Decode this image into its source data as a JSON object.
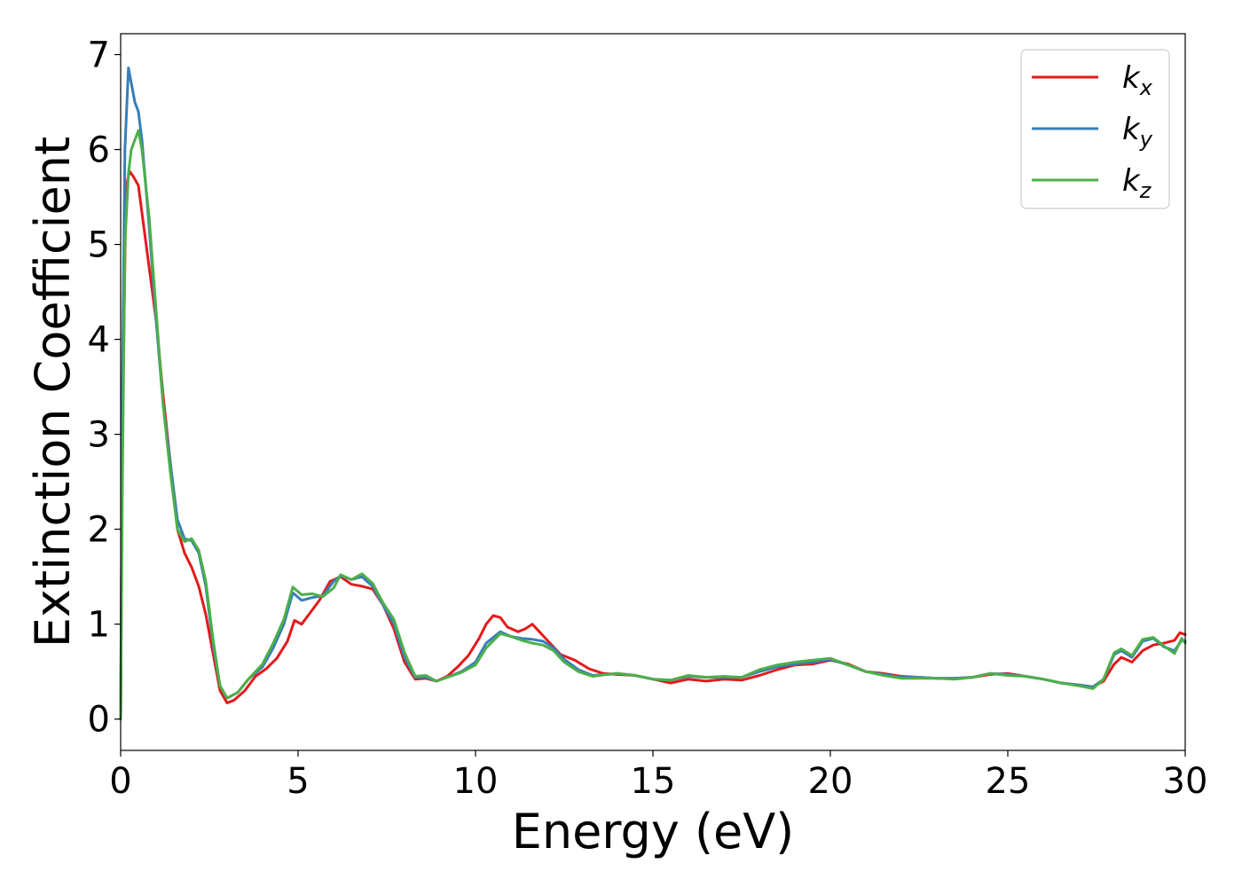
{
  "chart_data": {
    "type": "line",
    "title": "",
    "xlabel": "Energy (eV)",
    "ylabel": "Extinction Coefficient",
    "xlim": [
      0,
      30
    ],
    "ylim": [
      -0.33,
      7.22
    ],
    "xticks": [
      0,
      5,
      10,
      15,
      20,
      25,
      30
    ],
    "yticks": [
      0,
      1,
      2,
      3,
      4,
      5,
      6,
      7
    ],
    "grid": false,
    "legend_position": "top-right",
    "series": [
      {
        "name": "k_x",
        "symbol": "k",
        "subscript": "x",
        "color": "#e41a1c",
        "points": [
          [
            0,
            0
          ],
          [
            0.05,
            3.0
          ],
          [
            0.15,
            5.6
          ],
          [
            0.25,
            5.77
          ],
          [
            0.35,
            5.72
          ],
          [
            0.5,
            5.62
          ],
          [
            0.7,
            5.05
          ],
          [
            1.0,
            4.2
          ],
          [
            1.2,
            3.4
          ],
          [
            1.4,
            2.7
          ],
          [
            1.6,
            2.0
          ],
          [
            1.8,
            1.75
          ],
          [
            2.0,
            1.6
          ],
          [
            2.2,
            1.4
          ],
          [
            2.4,
            1.1
          ],
          [
            2.6,
            0.7
          ],
          [
            2.8,
            0.3
          ],
          [
            3.0,
            0.17
          ],
          [
            3.2,
            0.2
          ],
          [
            3.5,
            0.3
          ],
          [
            3.8,
            0.45
          ],
          [
            4.1,
            0.53
          ],
          [
            4.4,
            0.64
          ],
          [
            4.7,
            0.82
          ],
          [
            4.9,
            1.04
          ],
          [
            5.1,
            1.0
          ],
          [
            5.3,
            1.1
          ],
          [
            5.6,
            1.25
          ],
          [
            5.9,
            1.45
          ],
          [
            6.2,
            1.5
          ],
          [
            6.5,
            1.42
          ],
          [
            6.8,
            1.4
          ],
          [
            7.1,
            1.37
          ],
          [
            7.4,
            1.2
          ],
          [
            7.7,
            0.95
          ],
          [
            8.0,
            0.6
          ],
          [
            8.3,
            0.42
          ],
          [
            8.6,
            0.43
          ],
          [
            8.9,
            0.4
          ],
          [
            9.2,
            0.45
          ],
          [
            9.5,
            0.55
          ],
          [
            9.8,
            0.67
          ],
          [
            10.1,
            0.85
          ],
          [
            10.3,
            1.0
          ],
          [
            10.5,
            1.09
          ],
          [
            10.7,
            1.07
          ],
          [
            10.9,
            0.97
          ],
          [
            11.2,
            0.92
          ],
          [
            11.4,
            0.95
          ],
          [
            11.6,
            1.0
          ],
          [
            11.8,
            0.92
          ],
          [
            12.1,
            0.8
          ],
          [
            12.4,
            0.68
          ],
          [
            12.8,
            0.62
          ],
          [
            13.2,
            0.53
          ],
          [
            13.6,
            0.48
          ],
          [
            14.0,
            0.47
          ],
          [
            14.5,
            0.46
          ],
          [
            15.0,
            0.42
          ],
          [
            15.5,
            0.38
          ],
          [
            16.0,
            0.42
          ],
          [
            16.5,
            0.4
          ],
          [
            17.0,
            0.42
          ],
          [
            17.5,
            0.41
          ],
          [
            18.0,
            0.46
          ],
          [
            18.5,
            0.52
          ],
          [
            19.0,
            0.57
          ],
          [
            19.5,
            0.58
          ],
          [
            20.0,
            0.62
          ],
          [
            20.5,
            0.58
          ],
          [
            21.0,
            0.5
          ],
          [
            21.5,
            0.48
          ],
          [
            22.0,
            0.45
          ],
          [
            22.5,
            0.44
          ],
          [
            23.0,
            0.43
          ],
          [
            23.5,
            0.43
          ],
          [
            24.0,
            0.44
          ],
          [
            24.5,
            0.47
          ],
          [
            25.0,
            0.48
          ],
          [
            25.5,
            0.45
          ],
          [
            26.0,
            0.42
          ],
          [
            26.5,
            0.38
          ],
          [
            27.0,
            0.36
          ],
          [
            27.4,
            0.34
          ],
          [
            27.7,
            0.4
          ],
          [
            28.0,
            0.58
          ],
          [
            28.2,
            0.65
          ],
          [
            28.5,
            0.6
          ],
          [
            28.8,
            0.72
          ],
          [
            29.1,
            0.78
          ],
          [
            29.4,
            0.8
          ],
          [
            29.7,
            0.83
          ],
          [
            29.85,
            0.91
          ],
          [
            30.0,
            0.89
          ]
        ]
      },
      {
        "name": "k_y",
        "symbol": "k",
        "subscript": "y",
        "color": "#377eb8",
        "points": [
          [
            0,
            0
          ],
          [
            0.05,
            3.5
          ],
          [
            0.12,
            6.0
          ],
          [
            0.22,
            6.86
          ],
          [
            0.3,
            6.7
          ],
          [
            0.4,
            6.5
          ],
          [
            0.5,
            6.4
          ],
          [
            0.6,
            6.1
          ],
          [
            0.8,
            5.2
          ],
          [
            1.0,
            4.2
          ],
          [
            1.2,
            3.3
          ],
          [
            1.4,
            2.7
          ],
          [
            1.6,
            2.1
          ],
          [
            1.8,
            1.9
          ],
          [
            2.0,
            1.88
          ],
          [
            2.2,
            1.75
          ],
          [
            2.4,
            1.4
          ],
          [
            2.6,
            0.8
          ],
          [
            2.8,
            0.35
          ],
          [
            3.0,
            0.22
          ],
          [
            3.3,
            0.28
          ],
          [
            3.6,
            0.42
          ],
          [
            4.0,
            0.55
          ],
          [
            4.3,
            0.75
          ],
          [
            4.6,
            1.0
          ],
          [
            4.85,
            1.33
          ],
          [
            5.1,
            1.25
          ],
          [
            5.4,
            1.28
          ],
          [
            5.7,
            1.3
          ],
          [
            6.0,
            1.45
          ],
          [
            6.2,
            1.51
          ],
          [
            6.5,
            1.47
          ],
          [
            6.8,
            1.5
          ],
          [
            7.1,
            1.4
          ],
          [
            7.4,
            1.2
          ],
          [
            7.7,
            1.0
          ],
          [
            8.0,
            0.65
          ],
          [
            8.3,
            0.44
          ],
          [
            8.6,
            0.44
          ],
          [
            8.9,
            0.4
          ],
          [
            9.2,
            0.44
          ],
          [
            9.6,
            0.5
          ],
          [
            10.0,
            0.6
          ],
          [
            10.3,
            0.8
          ],
          [
            10.7,
            0.92
          ],
          [
            11.0,
            0.87
          ],
          [
            11.3,
            0.85
          ],
          [
            11.6,
            0.84
          ],
          [
            11.9,
            0.82
          ],
          [
            12.2,
            0.75
          ],
          [
            12.5,
            0.63
          ],
          [
            12.9,
            0.52
          ],
          [
            13.3,
            0.46
          ],
          [
            13.7,
            0.47
          ],
          [
            14.0,
            0.48
          ],
          [
            14.5,
            0.46
          ],
          [
            15.0,
            0.42
          ],
          [
            15.5,
            0.41
          ],
          [
            16.0,
            0.45
          ],
          [
            16.5,
            0.44
          ],
          [
            17.0,
            0.44
          ],
          [
            17.5,
            0.44
          ],
          [
            18.0,
            0.5
          ],
          [
            18.5,
            0.55
          ],
          [
            19.0,
            0.58
          ],
          [
            19.5,
            0.6
          ],
          [
            20.0,
            0.63
          ],
          [
            20.5,
            0.57
          ],
          [
            21.0,
            0.5
          ],
          [
            21.5,
            0.47
          ],
          [
            22.0,
            0.44
          ],
          [
            22.5,
            0.44
          ],
          [
            23.0,
            0.43
          ],
          [
            23.5,
            0.43
          ],
          [
            24.0,
            0.44
          ],
          [
            24.5,
            0.48
          ],
          [
            25.0,
            0.47
          ],
          [
            25.5,
            0.45
          ],
          [
            26.0,
            0.42
          ],
          [
            26.5,
            0.38
          ],
          [
            27.0,
            0.36
          ],
          [
            27.4,
            0.34
          ],
          [
            27.7,
            0.42
          ],
          [
            28.0,
            0.68
          ],
          [
            28.2,
            0.72
          ],
          [
            28.5,
            0.65
          ],
          [
            28.8,
            0.82
          ],
          [
            29.1,
            0.85
          ],
          [
            29.4,
            0.76
          ],
          [
            29.7,
            0.72
          ],
          [
            29.9,
            0.83
          ],
          [
            30.0,
            0.82
          ]
        ]
      },
      {
        "name": "k_z",
        "symbol": "k",
        "subscript": "z",
        "color": "#4daf4a",
        "points": [
          [
            0,
            0
          ],
          [
            0.05,
            2.5
          ],
          [
            0.12,
            5.0
          ],
          [
            0.22,
            5.75
          ],
          [
            0.3,
            6.0
          ],
          [
            0.4,
            6.1
          ],
          [
            0.5,
            6.2
          ],
          [
            0.6,
            6.0
          ],
          [
            0.8,
            5.3
          ],
          [
            1.0,
            4.3
          ],
          [
            1.2,
            3.3
          ],
          [
            1.4,
            2.6
          ],
          [
            1.6,
            2.0
          ],
          [
            1.8,
            1.87
          ],
          [
            2.0,
            1.9
          ],
          [
            2.2,
            1.78
          ],
          [
            2.4,
            1.45
          ],
          [
            2.6,
            0.85
          ],
          [
            2.8,
            0.35
          ],
          [
            3.0,
            0.22
          ],
          [
            3.3,
            0.28
          ],
          [
            3.6,
            0.42
          ],
          [
            4.0,
            0.58
          ],
          [
            4.3,
            0.8
          ],
          [
            4.6,
            1.05
          ],
          [
            4.85,
            1.39
          ],
          [
            5.1,
            1.31
          ],
          [
            5.4,
            1.32
          ],
          [
            5.7,
            1.29
          ],
          [
            6.0,
            1.38
          ],
          [
            6.2,
            1.52
          ],
          [
            6.5,
            1.47
          ],
          [
            6.8,
            1.53
          ],
          [
            7.1,
            1.43
          ],
          [
            7.4,
            1.22
          ],
          [
            7.7,
            1.05
          ],
          [
            8.0,
            0.7
          ],
          [
            8.3,
            0.45
          ],
          [
            8.6,
            0.46
          ],
          [
            8.9,
            0.4
          ],
          [
            9.2,
            0.44
          ],
          [
            9.6,
            0.49
          ],
          [
            10.0,
            0.57
          ],
          [
            10.3,
            0.75
          ],
          [
            10.7,
            0.9
          ],
          [
            11.0,
            0.87
          ],
          [
            11.3,
            0.83
          ],
          [
            11.6,
            0.8
          ],
          [
            11.9,
            0.78
          ],
          [
            12.2,
            0.72
          ],
          [
            12.5,
            0.6
          ],
          [
            12.9,
            0.5
          ],
          [
            13.3,
            0.45
          ],
          [
            13.7,
            0.47
          ],
          [
            14.0,
            0.48
          ],
          [
            14.5,
            0.46
          ],
          [
            15.0,
            0.42
          ],
          [
            15.5,
            0.41
          ],
          [
            16.0,
            0.46
          ],
          [
            16.5,
            0.44
          ],
          [
            17.0,
            0.45
          ],
          [
            17.5,
            0.44
          ],
          [
            18.0,
            0.52
          ],
          [
            18.5,
            0.57
          ],
          [
            19.0,
            0.6
          ],
          [
            19.5,
            0.62
          ],
          [
            20.0,
            0.64
          ],
          [
            20.5,
            0.57
          ],
          [
            21.0,
            0.5
          ],
          [
            21.5,
            0.46
          ],
          [
            22.0,
            0.43
          ],
          [
            22.5,
            0.43
          ],
          [
            23.0,
            0.43
          ],
          [
            23.5,
            0.42
          ],
          [
            24.0,
            0.44
          ],
          [
            24.5,
            0.48
          ],
          [
            25.0,
            0.46
          ],
          [
            25.5,
            0.45
          ],
          [
            26.0,
            0.42
          ],
          [
            26.5,
            0.38
          ],
          [
            27.0,
            0.35
          ],
          [
            27.4,
            0.32
          ],
          [
            27.7,
            0.42
          ],
          [
            28.0,
            0.7
          ],
          [
            28.2,
            0.74
          ],
          [
            28.5,
            0.67
          ],
          [
            28.8,
            0.84
          ],
          [
            29.1,
            0.86
          ],
          [
            29.4,
            0.77
          ],
          [
            29.7,
            0.69
          ],
          [
            29.9,
            0.85
          ],
          [
            30.0,
            0.8
          ]
        ]
      }
    ]
  }
}
